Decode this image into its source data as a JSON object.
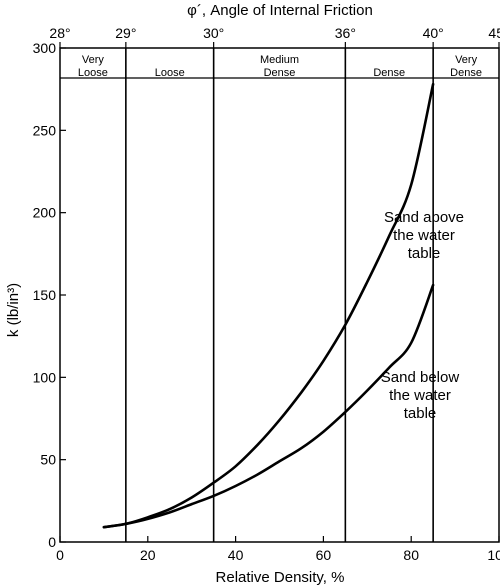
{
  "chart_data": {
    "type": "line",
    "title": "",
    "xlabel": "Relative Density, %",
    "ylabel": "k (lb/in³)",
    "top_axis_label": "φ´, Angle of Internal Friction",
    "xlim": [
      0,
      100
    ],
    "ylim": [
      0,
      300
    ],
    "x_ticks": [
      0,
      20,
      40,
      60,
      80,
      100
    ],
    "y_ticks": [
      0,
      50,
      100,
      150,
      200,
      250,
      300
    ],
    "top_ticks": [
      {
        "x": 0,
        "label": "28°"
      },
      {
        "x": 15,
        "label": "29°"
      },
      {
        "x": 35,
        "label": "30°"
      },
      {
        "x": 65,
        "label": "36°"
      },
      {
        "x": 85,
        "label": "40°"
      },
      {
        "x": 100,
        "label": "45°"
      }
    ],
    "bands": [
      {
        "from": 0,
        "to": 15,
        "label": "Very Loose"
      },
      {
        "from": 15,
        "to": 35,
        "label": "Loose"
      },
      {
        "from": 35,
        "to": 65,
        "label": "Medium Dense"
      },
      {
        "from": 65,
        "to": 85,
        "label": "Dense"
      },
      {
        "from": 85,
        "to": 100,
        "label": "Very Dense"
      }
    ],
    "series": [
      {
        "name": "Sand above the water table",
        "x": [
          10,
          15,
          20,
          25,
          30,
          35,
          40,
          45,
          50,
          55,
          60,
          65,
          70,
          75,
          80,
          85
        ],
        "y": [
          9,
          11,
          15,
          20,
          27,
          36,
          46,
          59,
          74,
          91,
          110,
          132,
          158,
          186,
          217,
          278
        ]
      },
      {
        "name": "Sand below the water table",
        "x": [
          10,
          15,
          20,
          25,
          30,
          35,
          40,
          45,
          50,
          55,
          60,
          65,
          70,
          75,
          80,
          85
        ],
        "y": [
          9,
          11,
          14,
          18,
          23,
          28,
          34,
          41,
          49,
          57,
          67,
          79,
          92,
          106,
          121,
          156
        ]
      }
    ],
    "annotations": [
      {
        "lines": [
          "Sand above",
          "the water",
          "table"
        ]
      },
      {
        "lines": [
          "Sand below",
          "the water",
          "table"
        ]
      }
    ],
    "grid": false,
    "legend": "none"
  }
}
